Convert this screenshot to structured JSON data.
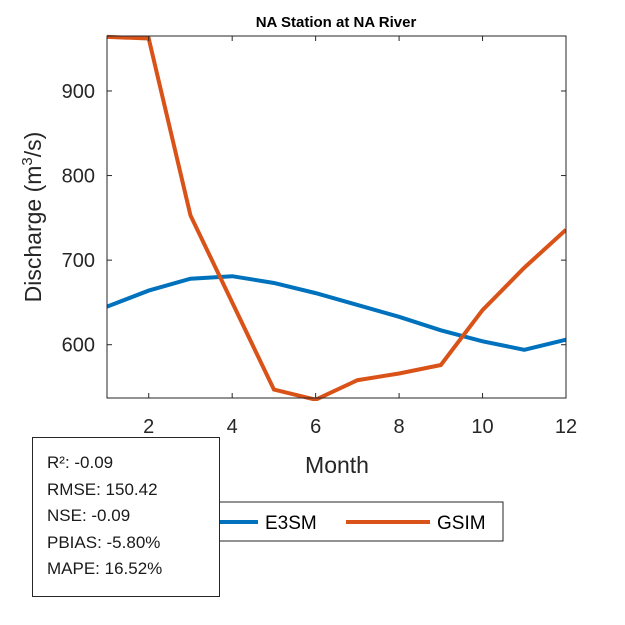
{
  "chart_data": {
    "type": "line",
    "title": "NA  Station at  NA  River",
    "xlabel": "Month",
    "ylabel": "Discharge (m³/s)",
    "ylabel_base": "Discharge (m",
    "ylabel_sup": "3",
    "ylabel_tail": "/s)",
    "xlim": [
      1,
      12
    ],
    "ylim": [
      537,
      965
    ],
    "xticks": [
      2,
      4,
      6,
      8,
      10,
      12
    ],
    "yticks": [
      600,
      700,
      800,
      900
    ],
    "grid": false,
    "legend_placement": "bottom-outside",
    "x": [
      1,
      2,
      3,
      4,
      5,
      6,
      7,
      8,
      9,
      10,
      11,
      12
    ],
    "series": [
      {
        "name": "E3SM",
        "color": "#0072BD",
        "values": [
          645,
          664,
          678,
          681,
          673,
          661,
          647,
          633,
          617,
          604,
          594,
          606
        ]
      },
      {
        "name": "GSIM",
        "color": "#D95319",
        "values": [
          964,
          962,
          753,
          650,
          547,
          535,
          558,
          566,
          576,
          641,
          691,
          736
        ]
      }
    ]
  },
  "stats": [
    "R²: -0.09",
    "RMSE: 150.42",
    "NSE: -0.09",
    "PBIAS: -5.80%",
    "MAPE: 16.52%"
  ]
}
